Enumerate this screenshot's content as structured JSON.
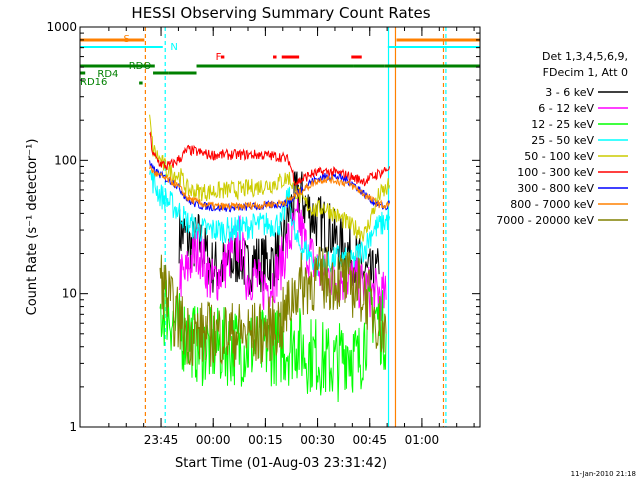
{
  "chart_data": {
    "type": "line",
    "title": "HESSI Observing Summary Count Rates",
    "xlabel": "Start Time (01-Aug-03 23:31:42)",
    "ylabel": "Count Rate (s⁻¹ detector⁻¹)",
    "yscale": "log",
    "ylim": [
      1,
      1000
    ],
    "xlim_minutes": [
      -10,
      105
    ],
    "x_origin": "23:31:42",
    "x_ticks": [
      {
        "m": 13.3,
        "label": "23:45"
      },
      {
        "m": 28.3,
        "label": "00:00"
      },
      {
        "m": 43.3,
        "label": "00:15"
      },
      {
        "m": 58.3,
        "label": "00:30"
      },
      {
        "m": 73.3,
        "label": "00:45"
      },
      {
        "m": 88.3,
        "label": "01:00"
      }
    ],
    "y_ticks": [
      {
        "v": 1,
        "label": "1"
      },
      {
        "v": 10,
        "label": "10"
      },
      {
        "v": 100,
        "label": "100"
      },
      {
        "v": 1000,
        "label": "1000"
      }
    ],
    "legend": {
      "placement": "right",
      "header": [
        "Det 1,3,4,5,6,9,",
        "FDecim 1, Att 0"
      ]
    },
    "timestamp": "11-Jan-2010 21:18",
    "series": [
      {
        "name": "3 - 6 keV",
        "color": "#000000",
        "x": [
          18.5,
          20,
          22,
          24,
          26,
          28,
          31,
          34,
          36,
          38,
          40,
          42,
          45,
          48,
          50,
          53,
          55,
          58,
          60,
          62,
          64,
          67,
          70,
          72,
          74,
          76
        ],
        "values": [
          28,
          28,
          22,
          26,
          20,
          16,
          16,
          17,
          20,
          15,
          18,
          17,
          17,
          22,
          40,
          58,
          45,
          35,
          33,
          30,
          24,
          21,
          17,
          14,
          13,
          14
        ]
      },
      {
        "name": "6 - 12 keV",
        "color": "#ff00ff",
        "x": [
          18.5,
          20,
          22,
          24,
          26,
          28,
          31,
          34,
          36,
          38,
          40,
          42,
          45,
          48,
          50,
          53,
          55,
          58,
          60,
          62,
          64,
          67,
          70,
          72,
          74,
          76,
          78
        ],
        "values": [
          14,
          13,
          18,
          22,
          16,
          12,
          15,
          22,
          25,
          13,
          14,
          11,
          12,
          17,
          25,
          35,
          22,
          16,
          13,
          14,
          13,
          13,
          12,
          11,
          10,
          10,
          9
        ]
      },
      {
        "name": "12 - 25 keV",
        "color": "#00ff00",
        "x": [
          13,
          15,
          17,
          19,
          21,
          24,
          27,
          30,
          33,
          36,
          39,
          42,
          45,
          48,
          50,
          52,
          55,
          58,
          61,
          64,
          67,
          70,
          72,
          74,
          76,
          78
        ],
        "values": [
          7,
          8,
          6,
          5,
          5,
          4,
          4,
          4,
          4,
          4,
          4,
          4,
          4,
          4,
          4,
          4.5,
          3.5,
          3.5,
          3,
          3,
          4,
          3,
          5,
          8,
          6,
          5
        ]
      },
      {
        "name": "25 - 50 keV",
        "color": "#00ffff",
        "x": [
          10,
          11,
          13,
          15,
          17,
          19,
          21,
          24,
          27,
          30,
          33,
          36,
          39,
          42,
          45,
          48,
          50,
          52,
          54,
          56,
          58,
          60,
          62,
          64,
          66,
          68,
          70,
          72,
          74,
          76,
          78,
          79
        ],
        "values": [
          80,
          70,
          55,
          50,
          45,
          40,
          34,
          30,
          30,
          30,
          30,
          31,
          32,
          33,
          33,
          34,
          55,
          25,
          22,
          20,
          16,
          16,
          17,
          19,
          18,
          17,
          20,
          22,
          30,
          32,
          35,
          38
        ]
      },
      {
        "name": "50 - 100 keV",
        "color": "#cccc00",
        "x": [
          10,
          11,
          13,
          15,
          17,
          19,
          21,
          24,
          27,
          30,
          33,
          36,
          39,
          42,
          45,
          48,
          50,
          52,
          54,
          56,
          58,
          60,
          62,
          64,
          66,
          68,
          70,
          72,
          74,
          76,
          78,
          79
        ],
        "values": [
          200,
          120,
          100,
          85,
          80,
          75,
          60,
          58,
          58,
          59,
          60,
          60,
          62,
          64,
          66,
          70,
          75,
          60,
          50,
          45,
          42,
          45,
          42,
          38,
          35,
          32,
          30,
          28,
          40,
          55,
          60,
          65
        ]
      },
      {
        "name": "100 - 300 keV",
        "color": "#ff0000",
        "x": [
          10,
          11,
          13,
          15,
          17,
          19,
          21,
          24,
          27,
          30,
          33,
          36,
          39,
          42,
          45,
          48,
          50,
          52,
          54,
          56,
          58,
          60,
          62,
          64,
          66,
          68,
          70,
          72,
          74,
          76,
          78,
          79
        ],
        "values": [
          160,
          110,
          95,
          90,
          95,
          105,
          120,
          115,
          110,
          110,
          110,
          110,
          110,
          110,
          108,
          106,
          100,
          68,
          72,
          78,
          80,
          82,
          82,
          80,
          78,
          75,
          72,
          70,
          75,
          80,
          85,
          90
        ]
      },
      {
        "name": "300 - 800 keV",
        "color": "#0000ff",
        "x": [
          10,
          11,
          13,
          15,
          17,
          19,
          21,
          24,
          27,
          30,
          33,
          36,
          39,
          42,
          45,
          48,
          50,
          52,
          54,
          56,
          58,
          60,
          62,
          64,
          66,
          68,
          70,
          72,
          74,
          76,
          78,
          79
        ],
        "values": [
          95,
          85,
          78,
          72,
          68,
          60,
          50,
          46,
          45,
          44,
          44,
          44,
          45,
          45,
          46,
          47,
          48,
          55,
          62,
          68,
          72,
          75,
          76,
          75,
          72,
          68,
          62,
          55,
          50,
          46,
          44,
          48
        ]
      },
      {
        "name": "800 - 7000 keV",
        "color": "#ff8000",
        "x": [
          10,
          11,
          13,
          15,
          17,
          19,
          21,
          24,
          27,
          30,
          33,
          36,
          39,
          42,
          45,
          48,
          50,
          52,
          54,
          56,
          58,
          60,
          62,
          64,
          66,
          68,
          70,
          72,
          74,
          76,
          78,
          79
        ],
        "values": [
          90,
          82,
          76,
          72,
          68,
          60,
          52,
          48,
          46,
          45,
          45,
          45,
          46,
          46,
          47,
          48,
          50,
          55,
          60,
          65,
          70,
          72,
          72,
          70,
          68,
          65,
          60,
          55,
          50,
          47,
          45,
          48
        ]
      },
      {
        "name": "7000 - 20000 keV",
        "color": "#808000",
        "x": [
          13,
          15,
          17,
          19,
          21,
          24,
          27,
          30,
          33,
          36,
          39,
          42,
          45,
          48,
          50,
          52,
          55,
          58,
          61,
          64,
          67,
          70,
          72,
          74,
          76,
          78
        ],
        "values": [
          13,
          10,
          7,
          6,
          5,
          5,
          5,
          5,
          5,
          5,
          5,
          5,
          5.5,
          6,
          8,
          11,
          12,
          13,
          13,
          13,
          12,
          11,
          10,
          8,
          6,
          5
        ]
      }
    ],
    "annotations": [
      {
        "label": "S",
        "color": "#ff8000"
      },
      {
        "label": "N",
        "color": "#00ffff"
      },
      {
        "label": "F",
        "color": "#ff0000"
      },
      {
        "label": "RDO",
        "color": "#008000"
      },
      {
        "label": "RD4",
        "color": "#008000"
      },
      {
        "label": "RD16",
        "color": "#008000"
      }
    ]
  }
}
